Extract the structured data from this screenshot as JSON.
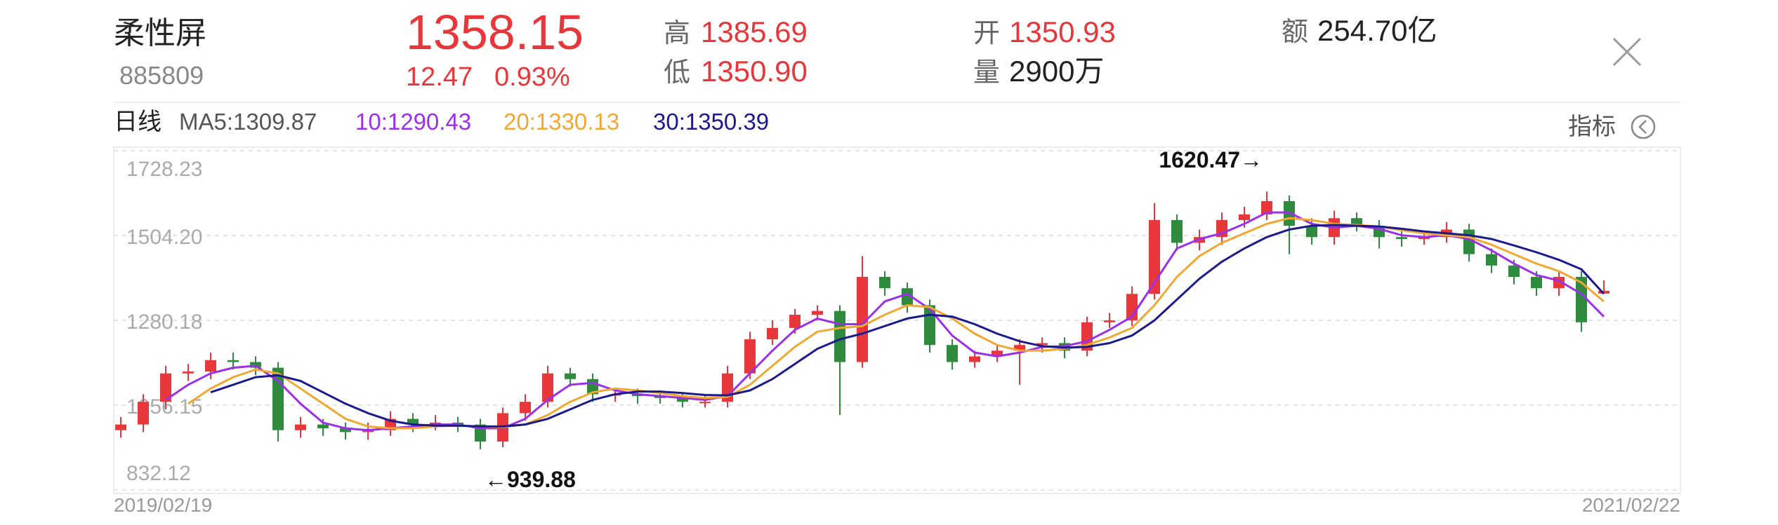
{
  "header": {
    "name": "柔性屏",
    "code": "885809",
    "price": "1358.15",
    "change": "12.47",
    "change_pct": "0.93%",
    "high_label": "高",
    "high": "1385.69",
    "low_label": "低",
    "low": "1350.90",
    "open_label": "开",
    "open": "1350.93",
    "volume_label": "量",
    "volume": "2900万",
    "amount_label": "额",
    "amount": "254.70亿",
    "indicator_button": "指标"
  },
  "chart_data": {
    "type": "candlestick",
    "period": "日线",
    "ma5_label": "MA5:1309.87",
    "up_color": "#e8373a",
    "down_color": "#2e8b3e",
    "grid": true,
    "ylim": [
      832.12,
      1728.23
    ],
    "yticks": [
      832.12,
      1056.15,
      1280.18,
      {
        "value": 1504.2,
        "label": "1504.20"
      },
      1728.23
    ],
    "xtick_labels": [
      "2019/02/19",
      "2021/02/22"
    ],
    "annotations": [
      "1620.47→",
      "←939.88"
    ],
    "candles": {
      "open": [
        990,
        1005,
        1065,
        1140,
        1145,
        1175,
        1170,
        1155,
        990,
        1005,
        995,
        985,
        990,
        1020,
        1005,
        1010,
        1005,
        960,
        1035,
        1065,
        1140,
        1125,
        1085,
        1085,
        1080,
        1075,
        1065,
        1065,
        1140,
        1230,
        1260,
        1295,
        1305,
        1170,
        1395,
        1365,
        1320,
        1215,
        1170,
        1185,
        1200,
        1215,
        1220,
        1200,
        1275,
        1280,
        1350,
        1545,
        1485,
        1500,
        1545,
        1560,
        1595,
        1530,
        1500,
        1550,
        1530,
        1500,
        1495,
        1500,
        1520,
        1455,
        1425,
        1395,
        1365,
        1395,
        1350.93
      ],
      "high": [
        1025,
        1085,
        1160,
        1165,
        1195,
        1195,
        1185,
        1170,
        1025,
        1020,
        1010,
        1010,
        1040,
        1035,
        1030,
        1025,
        1020,
        1050,
        1085,
        1160,
        1155,
        1140,
        1100,
        1100,
        1095,
        1090,
        1085,
        1160,
        1250,
        1280,
        1310,
        1320,
        1320,
        1450,
        1410,
        1380,
        1335,
        1230,
        1200,
        1215,
        1230,
        1235,
        1235,
        1290,
        1300,
        1370,
        1590,
        1560,
        1520,
        1565,
        1580,
        1620.47,
        1610,
        1550,
        1570,
        1565,
        1545,
        1515,
        1515,
        1540,
        1535,
        1470,
        1440,
        1410,
        1410,
        1410,
        1385.69
      ],
      "low": [
        970,
        985,
        1045,
        1120,
        1125,
        1150,
        1135,
        960,
        970,
        975,
        965,
        965,
        975,
        985,
        990,
        985,
        939.88,
        945,
        1015,
        1050,
        1105,
        1065,
        1065,
        1060,
        1060,
        1050,
        1050,
        1050,
        1125,
        1215,
        1245,
        1280,
        1030,
        1155,
        1345,
        1300,
        1195,
        1150,
        1155,
        1170,
        1110,
        1195,
        1180,
        1185,
        1260,
        1265,
        1335,
        1465,
        1465,
        1480,
        1525,
        1545,
        1455,
        1480,
        1480,
        1515,
        1470,
        1475,
        1480,
        1485,
        1435,
        1405,
        1375,
        1345,
        1345,
        1250,
        1350.9
      ],
      "close": [
        1005,
        1065,
        1140,
        1145,
        1175,
        1170,
        1155,
        990,
        1005,
        995,
        985,
        990,
        1020,
        1005,
        1010,
        1005,
        960,
        1035,
        1065,
        1140,
        1125,
        1085,
        1085,
        1080,
        1075,
        1065,
        1065,
        1140,
        1230,
        1260,
        1295,
        1305,
        1170,
        1395,
        1365,
        1320,
        1215,
        1170,
        1185,
        1200,
        1215,
        1220,
        1200,
        1275,
        1280,
        1350,
        1545,
        1485,
        1500,
        1545,
        1560,
        1595,
        1530,
        1500,
        1550,
        1530,
        1500,
        1495,
        1500,
        1520,
        1455,
        1425,
        1395,
        1365,
        1395,
        1275,
        1358.15
      ]
    },
    "series": [
      {
        "name": "10:1290.43",
        "color": "#9b30e8",
        "values": [
          null,
          null,
          1070,
          1110,
          1140,
          1155,
          1160,
          1120,
          1060,
          1010,
          995,
          990,
          995,
          1000,
          1005,
          1005,
          995,
          995,
          1020,
          1070,
          1110,
          1115,
          1095,
          1085,
          1080,
          1075,
          1070,
          1080,
          1140,
          1200,
          1255,
          1285,
          1270,
          1270,
          1330,
          1350,
          1310,
          1240,
          1195,
          1185,
          1195,
          1210,
          1212,
          1225,
          1255,
          1290,
          1380,
          1470,
          1495,
          1510,
          1535,
          1565,
          1565,
          1535,
          1525,
          1530,
          1522,
          1505,
          1500,
          1505,
          1495,
          1465,
          1430,
          1400,
          1385,
          1350,
          1290
        ]
      },
      {
        "name": "20:1330.13",
        "color": "#f0a830",
        "values": [
          null,
          null,
          null,
          1060,
          1100,
          1130,
          1150,
          1140,
          1100,
          1060,
          1020,
          1000,
          995,
          995,
          1000,
          1002,
          1000,
          998,
          1005,
          1030,
          1065,
          1090,
          1100,
          1095,
          1088,
          1080,
          1075,
          1078,
          1110,
          1160,
          1210,
          1250,
          1260,
          1265,
          1295,
          1320,
          1315,
          1285,
          1245,
          1215,
          1200,
          1200,
          1205,
          1215,
          1235,
          1260,
          1320,
          1395,
          1450,
          1485,
          1510,
          1535,
          1550,
          1545,
          1535,
          1532,
          1528,
          1518,
          1510,
          1505,
          1500,
          1480,
          1455,
          1430,
          1410,
          1380,
          1330
        ]
      },
      {
        "name": "30:1350.39",
        "color": "#1a1a8c",
        "values": [
          null,
          null,
          null,
          null,
          1090,
          1110,
          1130,
          1135,
          1120,
          1090,
          1060,
          1035,
          1015,
          1005,
          1002,
          1002,
          1000,
          1000,
          1005,
          1020,
          1045,
          1070,
          1085,
          1092,
          1092,
          1088,
          1083,
          1082,
          1095,
          1125,
          1165,
          1205,
          1230,
          1245,
          1265,
          1285,
          1295,
          1290,
          1270,
          1245,
          1225,
          1212,
          1208,
          1210,
          1220,
          1240,
          1280,
          1335,
          1390,
          1435,
          1470,
          1500,
          1520,
          1530,
          1532,
          1530,
          1528,
          1522,
          1515,
          1510,
          1505,
          1495,
          1478,
          1460,
          1440,
          1415,
          1350
        ]
      }
    ]
  }
}
